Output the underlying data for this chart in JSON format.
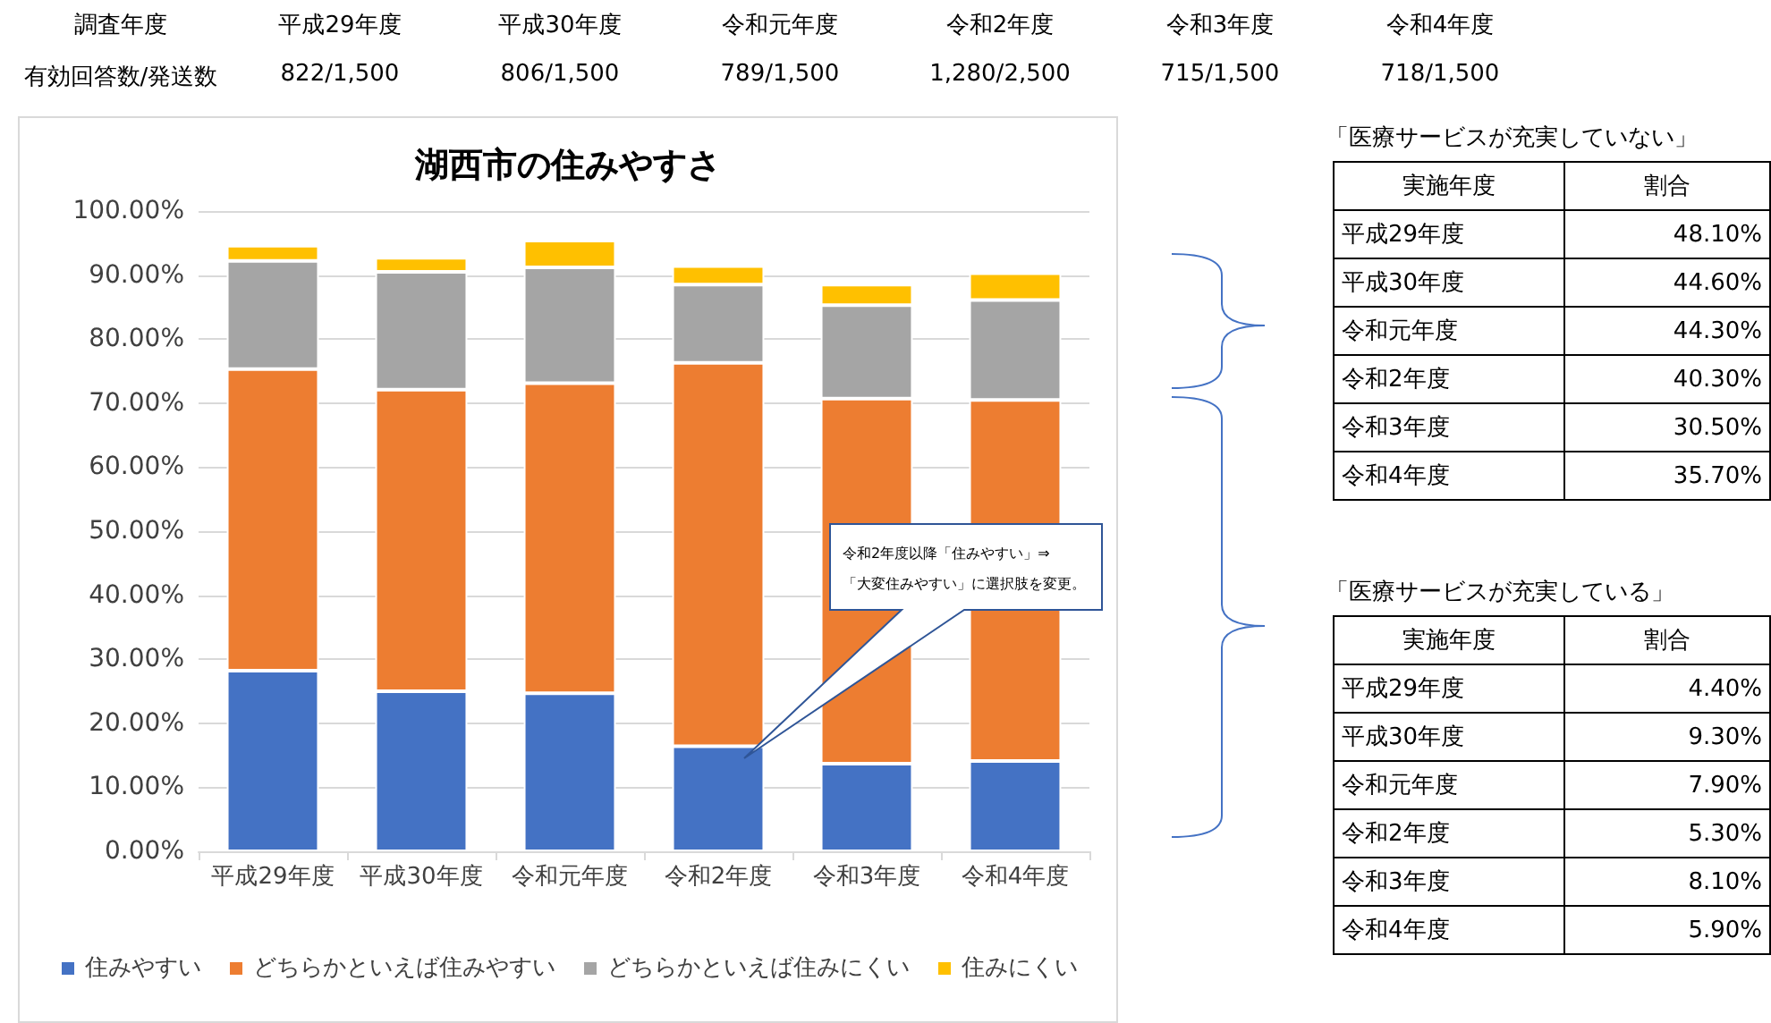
{
  "chart_data": [
    {
      "type": "other",
      "xlabel": "調査年度",
      "ylabel": "有効回答数/発送数",
      "categories": [
        "平成29年度",
        "平成30年度",
        "令和元年度",
        "令和2年度",
        "令和3年度",
        "令和4年度"
      ],
      "value_labels": [
        "822/1,500",
        "806/1,500",
        "789/1,500",
        "1,280/2,500",
        "715/1,500",
        "718/1,500"
      ]
    },
    {
      "type": "bar",
      "title": "湖西市の住みやすさ",
      "categories": [
        "平成29年度",
        "平成30年度",
        "令和元年度",
        "令和2年度",
        "令和3年度",
        "令和4年度"
      ],
      "stacked": true,
      "ylim": [
        0,
        100
      ],
      "yticks": [
        {
          "value": 0,
          "label": "0.00%"
        },
        {
          "value": 10,
          "label": "10.00%"
        },
        {
          "value": 20,
          "label": "20.00%"
        },
        {
          "value": 30,
          "label": "30.00%"
        },
        {
          "value": 40,
          "label": "40.00%"
        },
        {
          "value": 50,
          "label": "50.00%"
        },
        {
          "value": 60,
          "label": "60.00%"
        },
        {
          "value": 70,
          "label": "70.00%"
        },
        {
          "value": 80,
          "label": "80.00%"
        },
        {
          "value": 90,
          "label": "90.00%"
        },
        {
          "value": 100,
          "label": "100.00%"
        }
      ],
      "grid": "y",
      "legend": "bottom",
      "series": [
        {
          "name": "住みやすい",
          "color": "#4472c4",
          "values": [
            28.2,
            25.0,
            24.7,
            16.4,
            13.7,
            14.1
          ]
        },
        {
          "name": "どちらかといえば住みやすい",
          "color": "#ed7d31",
          "values": [
            47.1,
            47.1,
            48.4,
            59.9,
            57.0,
            56.4
          ]
        },
        {
          "name": "どちらかといえば住みにくい",
          "color": "#a5a5a5",
          "values": [
            16.9,
            18.4,
            18.1,
            12.2,
            14.6,
            15.6
          ]
        },
        {
          "name": "住みにくい",
          "color": "#ffc000",
          "values": [
            2.4,
            2.2,
            4.2,
            2.9,
            3.2,
            4.2
          ]
        }
      ],
      "annotations": [
        "令和2年度以降「住みやすい」⇒\n「大変住みやすい」に選択肢を変更。"
      ]
    },
    {
      "type": "other",
      "title": "「医療サービスが充実していない」",
      "xlabel": "実施年度",
      "ylabel": "割合",
      "categories": [
        "平成29年度",
        "平成30年度",
        "令和元年度",
        "令和2年度",
        "令和3年度",
        "令和4年度"
      ],
      "value_labels": [
        "48.10%",
        "44.60%",
        "44.30%",
        "40.30%",
        "30.50%",
        "35.70%"
      ]
    },
    {
      "type": "other",
      "title": "「医療サービスが充実している」",
      "xlabel": "実施年度",
      "ylabel": "割合",
      "categories": [
        "平成29年度",
        "平成30年度",
        "令和元年度",
        "令和2年度",
        "令和3年度",
        "令和4年度"
      ],
      "value_labels": [
        "4.40%",
        "9.30%",
        "7.90%",
        "5.30%",
        "8.10%",
        "5.90%"
      ]
    }
  ]
}
